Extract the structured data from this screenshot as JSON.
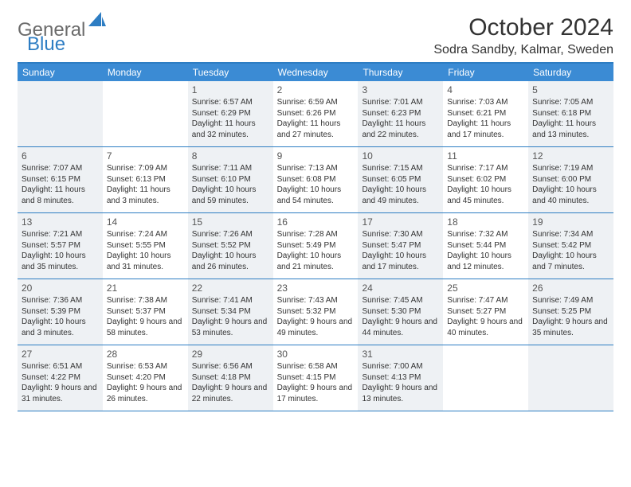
{
  "logo": {
    "part1": "General",
    "part2": "Blue"
  },
  "title": "October 2024",
  "location": "Sodra Sandby, Kalmar, Sweden",
  "dayNames": [
    "Sunday",
    "Monday",
    "Tuesday",
    "Wednesday",
    "Thursday",
    "Friday",
    "Saturday"
  ],
  "colors": {
    "accent": "#2d7dc3",
    "headerBg": "#3b8bd4",
    "shaded": "#eef1f4",
    "text": "#333333",
    "logoGray": "#6b6b6b"
  },
  "weeks": [
    [
      {
        "day": "",
        "shaded": true
      },
      {
        "day": "",
        "shaded": false
      },
      {
        "day": "1",
        "shaded": true,
        "sunrise": "Sunrise: 6:57 AM",
        "sunset": "Sunset: 6:29 PM",
        "daylight": "Daylight: 11 hours and 32 minutes."
      },
      {
        "day": "2",
        "shaded": false,
        "sunrise": "Sunrise: 6:59 AM",
        "sunset": "Sunset: 6:26 PM",
        "daylight": "Daylight: 11 hours and 27 minutes."
      },
      {
        "day": "3",
        "shaded": true,
        "sunrise": "Sunrise: 7:01 AM",
        "sunset": "Sunset: 6:23 PM",
        "daylight": "Daylight: 11 hours and 22 minutes."
      },
      {
        "day": "4",
        "shaded": false,
        "sunrise": "Sunrise: 7:03 AM",
        "sunset": "Sunset: 6:21 PM",
        "daylight": "Daylight: 11 hours and 17 minutes."
      },
      {
        "day": "5",
        "shaded": true,
        "sunrise": "Sunrise: 7:05 AM",
        "sunset": "Sunset: 6:18 PM",
        "daylight": "Daylight: 11 hours and 13 minutes."
      }
    ],
    [
      {
        "day": "6",
        "shaded": true,
        "sunrise": "Sunrise: 7:07 AM",
        "sunset": "Sunset: 6:15 PM",
        "daylight": "Daylight: 11 hours and 8 minutes."
      },
      {
        "day": "7",
        "shaded": false,
        "sunrise": "Sunrise: 7:09 AM",
        "sunset": "Sunset: 6:13 PM",
        "daylight": "Daylight: 11 hours and 3 minutes."
      },
      {
        "day": "8",
        "shaded": true,
        "sunrise": "Sunrise: 7:11 AM",
        "sunset": "Sunset: 6:10 PM",
        "daylight": "Daylight: 10 hours and 59 minutes."
      },
      {
        "day": "9",
        "shaded": false,
        "sunrise": "Sunrise: 7:13 AM",
        "sunset": "Sunset: 6:08 PM",
        "daylight": "Daylight: 10 hours and 54 minutes."
      },
      {
        "day": "10",
        "shaded": true,
        "sunrise": "Sunrise: 7:15 AM",
        "sunset": "Sunset: 6:05 PM",
        "daylight": "Daylight: 10 hours and 49 minutes."
      },
      {
        "day": "11",
        "shaded": false,
        "sunrise": "Sunrise: 7:17 AM",
        "sunset": "Sunset: 6:02 PM",
        "daylight": "Daylight: 10 hours and 45 minutes."
      },
      {
        "day": "12",
        "shaded": true,
        "sunrise": "Sunrise: 7:19 AM",
        "sunset": "Sunset: 6:00 PM",
        "daylight": "Daylight: 10 hours and 40 minutes."
      }
    ],
    [
      {
        "day": "13",
        "shaded": true,
        "sunrise": "Sunrise: 7:21 AM",
        "sunset": "Sunset: 5:57 PM",
        "daylight": "Daylight: 10 hours and 35 minutes."
      },
      {
        "day": "14",
        "shaded": false,
        "sunrise": "Sunrise: 7:24 AM",
        "sunset": "Sunset: 5:55 PM",
        "daylight": "Daylight: 10 hours and 31 minutes."
      },
      {
        "day": "15",
        "shaded": true,
        "sunrise": "Sunrise: 7:26 AM",
        "sunset": "Sunset: 5:52 PM",
        "daylight": "Daylight: 10 hours and 26 minutes."
      },
      {
        "day": "16",
        "shaded": false,
        "sunrise": "Sunrise: 7:28 AM",
        "sunset": "Sunset: 5:49 PM",
        "daylight": "Daylight: 10 hours and 21 minutes."
      },
      {
        "day": "17",
        "shaded": true,
        "sunrise": "Sunrise: 7:30 AM",
        "sunset": "Sunset: 5:47 PM",
        "daylight": "Daylight: 10 hours and 17 minutes."
      },
      {
        "day": "18",
        "shaded": false,
        "sunrise": "Sunrise: 7:32 AM",
        "sunset": "Sunset: 5:44 PM",
        "daylight": "Daylight: 10 hours and 12 minutes."
      },
      {
        "day": "19",
        "shaded": true,
        "sunrise": "Sunrise: 7:34 AM",
        "sunset": "Sunset: 5:42 PM",
        "daylight": "Daylight: 10 hours and 7 minutes."
      }
    ],
    [
      {
        "day": "20",
        "shaded": true,
        "sunrise": "Sunrise: 7:36 AM",
        "sunset": "Sunset: 5:39 PM",
        "daylight": "Daylight: 10 hours and 3 minutes."
      },
      {
        "day": "21",
        "shaded": false,
        "sunrise": "Sunrise: 7:38 AM",
        "sunset": "Sunset: 5:37 PM",
        "daylight": "Daylight: 9 hours and 58 minutes."
      },
      {
        "day": "22",
        "shaded": true,
        "sunrise": "Sunrise: 7:41 AM",
        "sunset": "Sunset: 5:34 PM",
        "daylight": "Daylight: 9 hours and 53 minutes."
      },
      {
        "day": "23",
        "shaded": false,
        "sunrise": "Sunrise: 7:43 AM",
        "sunset": "Sunset: 5:32 PM",
        "daylight": "Daylight: 9 hours and 49 minutes."
      },
      {
        "day": "24",
        "shaded": true,
        "sunrise": "Sunrise: 7:45 AM",
        "sunset": "Sunset: 5:30 PM",
        "daylight": "Daylight: 9 hours and 44 minutes."
      },
      {
        "day": "25",
        "shaded": false,
        "sunrise": "Sunrise: 7:47 AM",
        "sunset": "Sunset: 5:27 PM",
        "daylight": "Daylight: 9 hours and 40 minutes."
      },
      {
        "day": "26",
        "shaded": true,
        "sunrise": "Sunrise: 7:49 AM",
        "sunset": "Sunset: 5:25 PM",
        "daylight": "Daylight: 9 hours and 35 minutes."
      }
    ],
    [
      {
        "day": "27",
        "shaded": true,
        "sunrise": "Sunrise: 6:51 AM",
        "sunset": "Sunset: 4:22 PM",
        "daylight": "Daylight: 9 hours and 31 minutes."
      },
      {
        "day": "28",
        "shaded": false,
        "sunrise": "Sunrise: 6:53 AM",
        "sunset": "Sunset: 4:20 PM",
        "daylight": "Daylight: 9 hours and 26 minutes."
      },
      {
        "day": "29",
        "shaded": true,
        "sunrise": "Sunrise: 6:56 AM",
        "sunset": "Sunset: 4:18 PM",
        "daylight": "Daylight: 9 hours and 22 minutes."
      },
      {
        "day": "30",
        "shaded": false,
        "sunrise": "Sunrise: 6:58 AM",
        "sunset": "Sunset: 4:15 PM",
        "daylight": "Daylight: 9 hours and 17 minutes."
      },
      {
        "day": "31",
        "shaded": true,
        "sunrise": "Sunrise: 7:00 AM",
        "sunset": "Sunset: 4:13 PM",
        "daylight": "Daylight: 9 hours and 13 minutes."
      },
      {
        "day": "",
        "shaded": false
      },
      {
        "day": "",
        "shaded": true
      }
    ]
  ]
}
